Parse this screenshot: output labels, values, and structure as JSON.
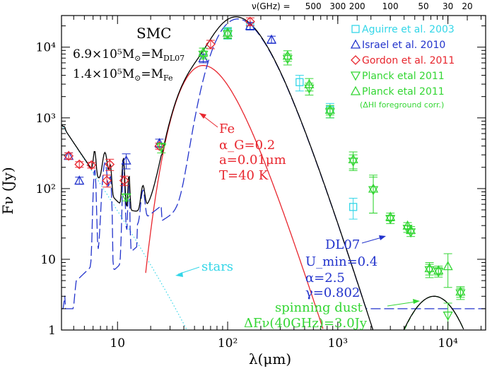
{
  "chart_data": {
    "type": "scatter",
    "title": "SMC",
    "xlabel": "λ(μm)",
    "ylabel": "Fν (Jy)",
    "top_axis_label": "ν(GHz) =",
    "xscale": "log",
    "yscale": "log",
    "xlim": [
      3.1,
      22000
    ],
    "ylim": [
      1,
      28000
    ],
    "x_ticks": [
      {
        "value": 10,
        "label": "10"
      },
      {
        "value": 100,
        "label": "10²"
      },
      {
        "value": 1000,
        "label": "10³"
      },
      {
        "value": 10000,
        "label": "10⁴"
      }
    ],
    "y_ticks": [
      {
        "value": 1,
        "label": "1"
      },
      {
        "value": 10,
        "label": "10"
      },
      {
        "value": 100,
        "label": "10²"
      },
      {
        "value": 1000,
        "label": "10³"
      },
      {
        "value": 10000,
        "label": "10⁴"
      }
    ],
    "top_ticks": [
      {
        "ghz": 500,
        "label": "500"
      },
      {
        "ghz": 300,
        "label": "300"
      },
      {
        "ghz": 200,
        "label": "200"
      },
      {
        "ghz": 100,
        "label": "100"
      },
      {
        "ghz": 50,
        "label": "50"
      },
      {
        "ghz": 30,
        "label": "30"
      },
      {
        "ghz": 20,
        "label": "20"
      }
    ],
    "mass_lines": [
      {
        "value": "6.9×10⁵M",
        "sub": "⊙",
        "eq": "=M",
        "label_sub": "DL07"
      },
      {
        "value": "1.4×10⁵M",
        "sub": "⊙",
        "eq": "=M",
        "label_sub": "Fe"
      }
    ],
    "legend": [
      {
        "marker": "square",
        "color": "#33d6e8",
        "label": "Aguirre et al. 2003"
      },
      {
        "marker": "triangle-up",
        "color": "#2233cc",
        "label": "Israel et al. 2010"
      },
      {
        "marker": "diamond",
        "color": "#e8262e",
        "label": "Gordon et al. 2011"
      },
      {
        "marker": "triangle-down",
        "color": "#33d633",
        "label": "Planck etal 2011"
      },
      {
        "marker": "triangle-up",
        "color": "#33d633",
        "label": "Planck etal 2011"
      }
    ],
    "legend_note": "(ΔHI foreground corr.)",
    "annotations": {
      "fe": {
        "lines": [
          "Fe",
          "α_G=0.2",
          "a=0.01μm",
          "T=40 K"
        ],
        "color": "#e8262e"
      },
      "dl07": {
        "lines": [
          "DL07",
          "U_min=0.4",
          "α=2.5",
          "γ=0.802"
        ],
        "color": "#2233cc"
      },
      "stars": {
        "label": "stars",
        "color": "#33d6e8"
      },
      "spinning": {
        "lines": [
          "spinning dust",
          "ΔFν(40GHz)=3.0Jy"
        ],
        "color": "#33d633"
      }
    },
    "series": [
      {
        "name": "Aguirre et al. 2003",
        "marker": "square",
        "color": "#33d6e8",
        "points": [
          [
            100,
            16000,
            3000
          ],
          [
            160,
            20000,
            2500
          ],
          [
            450,
            3200,
            800
          ],
          [
            850,
            1300,
            300
          ],
          [
            1380,
            55,
            18
          ]
        ]
      },
      {
        "name": "Israel et al. 2010",
        "marker": "triangle-up",
        "color": "#2233cc",
        "points": [
          [
            3.6,
            290,
            30
          ],
          [
            4.5,
            130,
            15
          ],
          [
            12,
            250,
            60
          ],
          [
            24,
            440,
            60
          ],
          [
            60,
            7000,
            1000
          ],
          [
            100,
            16000,
            2500
          ],
          [
            160,
            20000,
            2500
          ],
          [
            250,
            12800,
            1500
          ]
        ]
      },
      {
        "name": "Gordon et al. 2011",
        "marker": "diamond",
        "color": "#e8262e",
        "points": [
          [
            3.6,
            290,
            30
          ],
          [
            4.5,
            220,
            20
          ],
          [
            5.8,
            215,
            20
          ],
          [
            8,
            130,
            25
          ],
          [
            8.5,
            220,
            40
          ],
          [
            11.5,
            130,
            20
          ],
          [
            24,
            400,
            40
          ],
          [
            70,
            11000,
            1500
          ],
          [
            160,
            23000,
            3000
          ]
        ]
      },
      {
        "name": "Planck etal 2011",
        "marker": "triangle-down",
        "color": "#33d633",
        "points": [
          [
            12,
            75,
            8
          ],
          [
            25,
            380,
            60
          ],
          [
            60,
            7800,
            1000
          ],
          [
            100,
            15200,
            2000
          ],
          [
            350,
            6800,
            1200
          ],
          [
            550,
            2600,
            500
          ],
          [
            850,
            1200,
            200
          ],
          [
            1380,
            240,
            60
          ],
          [
            2100,
            95,
            50
          ],
          [
            3000,
            37,
            5
          ],
          [
            4300,
            27,
            3
          ],
          [
            4600,
            24,
            3
          ],
          [
            6800,
            7,
            1.5
          ],
          [
            8200,
            6.6,
            1
          ],
          [
            10000,
            1.6,
            0.8
          ],
          [
            13000,
            3.3,
            0.6
          ]
        ]
      },
      {
        "name": "Planck etal 2011 (ΔHI foreground corr.)",
        "marker": "triangle-up",
        "color": "#33d633",
        "points": [
          [
            60,
            8500,
            1200
          ],
          [
            100,
            16000,
            2500
          ],
          [
            350,
            7600,
            1300
          ],
          [
            550,
            3000,
            600
          ],
          [
            850,
            1300,
            200
          ],
          [
            1380,
            260,
            70
          ],
          [
            2100,
            100,
            55
          ],
          [
            3000,
            40,
            5
          ],
          [
            4300,
            30,
            3
          ],
          [
            4600,
            26,
            3
          ],
          [
            6800,
            7.5,
            1.5
          ],
          [
            8200,
            7,
            1
          ],
          [
            10000,
            8,
            4
          ],
          [
            13000,
            3.5,
            0.6
          ]
        ]
      }
    ],
    "curves": {
      "total": {
        "color": "#000000",
        "style": "solid"
      },
      "dl07": {
        "color": "#2233cc",
        "style": "dashed"
      },
      "fe": {
        "color": "#e8262e",
        "style": "solid"
      },
      "stars": {
        "color": "#33d6e8",
        "style": "dotted"
      },
      "spinning": {
        "color": "#33d633",
        "style": "dashed"
      }
    }
  }
}
